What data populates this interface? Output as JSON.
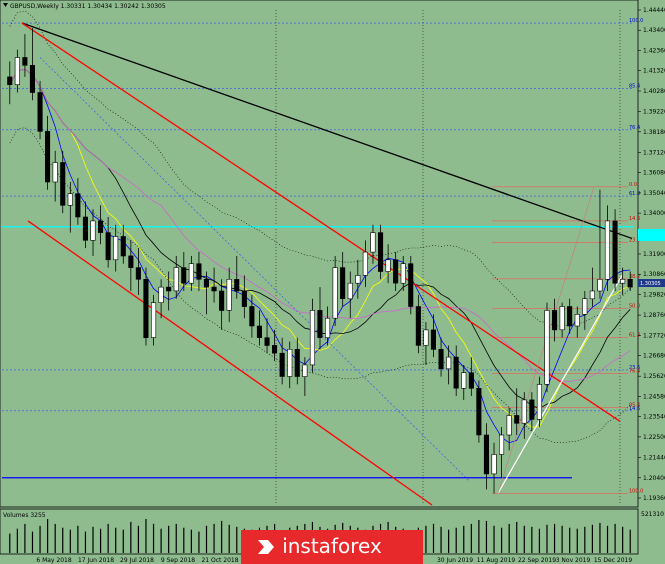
{
  "header": {
    "title": "GBPUSD,Weekly  1.30331 1.30434 1.30242 1.30305"
  },
  "volume_label": "Volumes 3255",
  "volume_scale_max": "521310",
  "brand": "instaforex",
  "colors": {
    "background": "#8fbc8f",
    "bull_candle": "#000000",
    "bear_candle": "#000000",
    "channel": "#ff0000",
    "trendline": "#000000",
    "support_line": "#ffffff",
    "horizontal_level": "#0000ff",
    "fib_line": "#ff4444",
    "cyan_level": "#00ffff",
    "current_price_bg": "#1e3a8a"
  },
  "chart_data": {
    "type": "candlestick",
    "symbol": "GBPUSD",
    "timeframe": "Weekly",
    "ohlc_header": {
      "open": 1.30331,
      "high": 1.30434,
      "low": 1.30242,
      "close": 1.30305
    },
    "current_price": "1.30305",
    "price_ticks": [
      "1.44440",
      "1.43400",
      "1.42360",
      "1.41320",
      "1.40280",
      "1.39220",
      "1.38180",
      "1.37120",
      "1.36080",
      "1.35040",
      "1.34000",
      "1.32960",
      "1.31900",
      "1.30860",
      "1.29820",
      "1.28760",
      "1.27720",
      "1.26680",
      "1.25620",
      "1.24580",
      "1.23540",
      "1.22500",
      "1.21440",
      "1.20400",
      "1.19360"
    ],
    "date_ticks": [
      "6 May 2018",
      "17 Jun 2018",
      "29 Jul 2018",
      "9 Sep 2018",
      "21 Oct 2018",
      "30 Jun 2019",
      "11 Aug 2019",
      "22 Sep 2019",
      "3 Nov 2019",
      "15 Dec 2019"
    ],
    "fib_levels_left": [
      {
        "label": "100.0",
        "price": 1.4377
      },
      {
        "label": "85.4",
        "price": 1.4041
      },
      {
        "label": "76.4",
        "price": 1.3828
      },
      {
        "label": "61.8",
        "price": 1.3488
      },
      {
        "label": "23.6",
        "price": 1.2594
      },
      {
        "label": "14.6",
        "price": 1.2384
      }
    ],
    "fib_levels_right": [
      {
        "label": "0.0",
        "price": 1.3535
      },
      {
        "label": "14.6",
        "price": 1.336
      },
      {
        "label": "23.6",
        "price": 1.325
      },
      {
        "label": "38.2",
        "price": 1.3062
      },
      {
        "label": "50.0",
        "price": 1.291
      },
      {
        "label": "61.8",
        "price": 1.276
      },
      {
        "label": "76.4",
        "price": 1.2575
      },
      {
        "label": "85.4",
        "price": 1.24
      },
      {
        "label": "100.0",
        "price": 1.196
      }
    ],
    "candles": [
      {
        "o": 1.41,
        "h": 1.418,
        "l": 1.396,
        "c": 1.406
      },
      {
        "o": 1.406,
        "h": 1.424,
        "l": 1.402,
        "c": 1.42
      },
      {
        "o": 1.42,
        "h": 1.432,
        "l": 1.41,
        "c": 1.416
      },
      {
        "o": 1.416,
        "h": 1.435,
        "l": 1.398,
        "c": 1.402
      },
      {
        "o": 1.402,
        "h": 1.408,
        "l": 1.378,
        "c": 1.382
      },
      {
        "o": 1.382,
        "h": 1.39,
        "l": 1.352,
        "c": 1.356
      },
      {
        "o": 1.356,
        "h": 1.372,
        "l": 1.346,
        "c": 1.366
      },
      {
        "o": 1.366,
        "h": 1.372,
        "l": 1.34,
        "c": 1.344
      },
      {
        "o": 1.344,
        "h": 1.356,
        "l": 1.33,
        "c": 1.35
      },
      {
        "o": 1.35,
        "h": 1.358,
        "l": 1.334,
        "c": 1.338
      },
      {
        "o": 1.338,
        "h": 1.346,
        "l": 1.322,
        "c": 1.326
      },
      {
        "o": 1.326,
        "h": 1.342,
        "l": 1.318,
        "c": 1.336
      },
      {
        "o": 1.336,
        "h": 1.344,
        "l": 1.324,
        "c": 1.33
      },
      {
        "o": 1.33,
        "h": 1.338,
        "l": 1.312,
        "c": 1.316
      },
      {
        "o": 1.316,
        "h": 1.334,
        "l": 1.31,
        "c": 1.328
      },
      {
        "o": 1.328,
        "h": 1.334,
        "l": 1.314,
        "c": 1.318
      },
      {
        "o": 1.318,
        "h": 1.326,
        "l": 1.3,
        "c": 1.312
      },
      {
        "o": 1.312,
        "h": 1.322,
        "l": 1.298,
        "c": 1.306
      },
      {
        "o": 1.306,
        "h": 1.312,
        "l": 1.272,
        "c": 1.276
      },
      {
        "o": 1.276,
        "h": 1.298,
        "l": 1.272,
        "c": 1.294
      },
      {
        "o": 1.294,
        "h": 1.306,
        "l": 1.286,
        "c": 1.302
      },
      {
        "o": 1.302,
        "h": 1.31,
        "l": 1.29,
        "c": 1.3
      },
      {
        "o": 1.3,
        "h": 1.318,
        "l": 1.296,
        "c": 1.312
      },
      {
        "o": 1.312,
        "h": 1.32,
        "l": 1.3,
        "c": 1.304
      },
      {
        "o": 1.304,
        "h": 1.318,
        "l": 1.3,
        "c": 1.314
      },
      {
        "o": 1.314,
        "h": 1.32,
        "l": 1.3,
        "c": 1.306
      },
      {
        "o": 1.306,
        "h": 1.31,
        "l": 1.288,
        "c": 1.302
      },
      {
        "o": 1.302,
        "h": 1.312,
        "l": 1.294,
        "c": 1.3
      },
      {
        "o": 1.3,
        "h": 1.306,
        "l": 1.28,
        "c": 1.29
      },
      {
        "o": 1.29,
        "h": 1.312,
        "l": 1.284,
        "c": 1.306
      },
      {
        "o": 1.306,
        "h": 1.318,
        "l": 1.296,
        "c": 1.3
      },
      {
        "o": 1.3,
        "h": 1.308,
        "l": 1.286,
        "c": 1.292
      },
      {
        "o": 1.292,
        "h": 1.298,
        "l": 1.276,
        "c": 1.282
      },
      {
        "o": 1.282,
        "h": 1.29,
        "l": 1.272,
        "c": 1.276
      },
      {
        "o": 1.276,
        "h": 1.286,
        "l": 1.268,
        "c": 1.272
      },
      {
        "o": 1.272,
        "h": 1.28,
        "l": 1.264,
        "c": 1.268
      },
      {
        "o": 1.268,
        "h": 1.276,
        "l": 1.252,
        "c": 1.256
      },
      {
        "o": 1.256,
        "h": 1.274,
        "l": 1.25,
        "c": 1.27
      },
      {
        "o": 1.27,
        "h": 1.276,
        "l": 1.252,
        "c": 1.256
      },
      {
        "o": 1.256,
        "h": 1.266,
        "l": 1.246,
        "c": 1.262
      },
      {
        "o": 1.262,
        "h": 1.296,
        "l": 1.258,
        "c": 1.29
      },
      {
        "o": 1.29,
        "h": 1.302,
        "l": 1.27,
        "c": 1.276
      },
      {
        "o": 1.276,
        "h": 1.292,
        "l": 1.272,
        "c": 1.286
      },
      {
        "o": 1.286,
        "h": 1.318,
        "l": 1.282,
        "c": 1.312
      },
      {
        "o": 1.312,
        "h": 1.32,
        "l": 1.292,
        "c": 1.296
      },
      {
        "o": 1.296,
        "h": 1.31,
        "l": 1.286,
        "c": 1.304
      },
      {
        "o": 1.304,
        "h": 1.316,
        "l": 1.296,
        "c": 1.308
      },
      {
        "o": 1.308,
        "h": 1.326,
        "l": 1.302,
        "c": 1.32
      },
      {
        "o": 1.32,
        "h": 1.334,
        "l": 1.314,
        "c": 1.33
      },
      {
        "o": 1.33,
        "h": 1.334,
        "l": 1.306,
        "c": 1.31
      },
      {
        "o": 1.31,
        "h": 1.324,
        "l": 1.304,
        "c": 1.316
      },
      {
        "o": 1.316,
        "h": 1.32,
        "l": 1.3,
        "c": 1.304
      },
      {
        "o": 1.304,
        "h": 1.318,
        "l": 1.3,
        "c": 1.314
      },
      {
        "o": 1.314,
        "h": 1.318,
        "l": 1.288,
        "c": 1.292
      },
      {
        "o": 1.292,
        "h": 1.298,
        "l": 1.268,
        "c": 1.272
      },
      {
        "o": 1.272,
        "h": 1.284,
        "l": 1.262,
        "c": 1.28
      },
      {
        "o": 1.28,
        "h": 1.288,
        "l": 1.266,
        "c": 1.27
      },
      {
        "o": 1.27,
        "h": 1.276,
        "l": 1.256,
        "c": 1.26
      },
      {
        "o": 1.26,
        "h": 1.272,
        "l": 1.252,
        "c": 1.266
      },
      {
        "o": 1.266,
        "h": 1.272,
        "l": 1.246,
        "c": 1.25
      },
      {
        "o": 1.25,
        "h": 1.262,
        "l": 1.244,
        "c": 1.258
      },
      {
        "o": 1.258,
        "h": 1.266,
        "l": 1.246,
        "c": 1.25
      },
      {
        "o": 1.25,
        "h": 1.254,
        "l": 1.222,
        "c": 1.226
      },
      {
        "o": 1.226,
        "h": 1.232,
        "l": 1.198,
        "c": 1.206
      },
      {
        "o": 1.206,
        "h": 1.222,
        "l": 1.196,
        "c": 1.216
      },
      {
        "o": 1.216,
        "h": 1.23,
        "l": 1.204,
        "c": 1.226
      },
      {
        "o": 1.226,
        "h": 1.24,
        "l": 1.218,
        "c": 1.236
      },
      {
        "o": 1.236,
        "h": 1.25,
        "l": 1.226,
        "c": 1.232
      },
      {
        "o": 1.232,
        "h": 1.248,
        "l": 1.224,
        "c": 1.244
      },
      {
        "o": 1.244,
        "h": 1.248,
        "l": 1.228,
        "c": 1.234
      },
      {
        "o": 1.234,
        "h": 1.256,
        "l": 1.23,
        "c": 1.252
      },
      {
        "o": 1.252,
        "h": 1.294,
        "l": 1.248,
        "c": 1.29
      },
      {
        "o": 1.29,
        "h": 1.296,
        "l": 1.274,
        "c": 1.28
      },
      {
        "o": 1.28,
        "h": 1.294,
        "l": 1.276,
        "c": 1.292
      },
      {
        "o": 1.292,
        "h": 1.296,
        "l": 1.278,
        "c": 1.282
      },
      {
        "o": 1.282,
        "h": 1.292,
        "l": 1.276,
        "c": 1.288
      },
      {
        "o": 1.288,
        "h": 1.3,
        "l": 1.28,
        "c": 1.296
      },
      {
        "o": 1.296,
        "h": 1.312,
        "l": 1.292,
        "c": 1.3
      },
      {
        "o": 1.3,
        "h": 1.352,
        "l": 1.296,
        "c": 1.306
      },
      {
        "o": 1.306,
        "h": 1.344,
        "l": 1.3,
        "c": 1.336
      },
      {
        "o": 1.336,
        "h": 1.342,
        "l": 1.3,
        "c": 1.304
      },
      {
        "o": 1.304,
        "h": 1.312,
        "l": 1.298,
        "c": 1.306
      },
      {
        "o": 1.306,
        "h": 1.31,
        "l": 1.3,
        "c": 1.302
      }
    ],
    "volumes": [
      20,
      25,
      30,
      22,
      28,
      35,
      30,
      26,
      24,
      28,
      22,
      27,
      25,
      30,
      26,
      24,
      32,
      28,
      35,
      30,
      25,
      28,
      30,
      26,
      24,
      22,
      28,
      30,
      33,
      29,
      27,
      25,
      24,
      26,
      28,
      30,
      22,
      26,
      28,
      30,
      32,
      27,
      25,
      29,
      31,
      28,
      26,
      24,
      28,
      30,
      32,
      27,
      25,
      23,
      26,
      28,
      30,
      27,
      24,
      26,
      28,
      30,
      34,
      33,
      28,
      26,
      30,
      32,
      28,
      27,
      25,
      29,
      30,
      28,
      26,
      25,
      27,
      29,
      31,
      28,
      30,
      27,
      24
    ]
  }
}
